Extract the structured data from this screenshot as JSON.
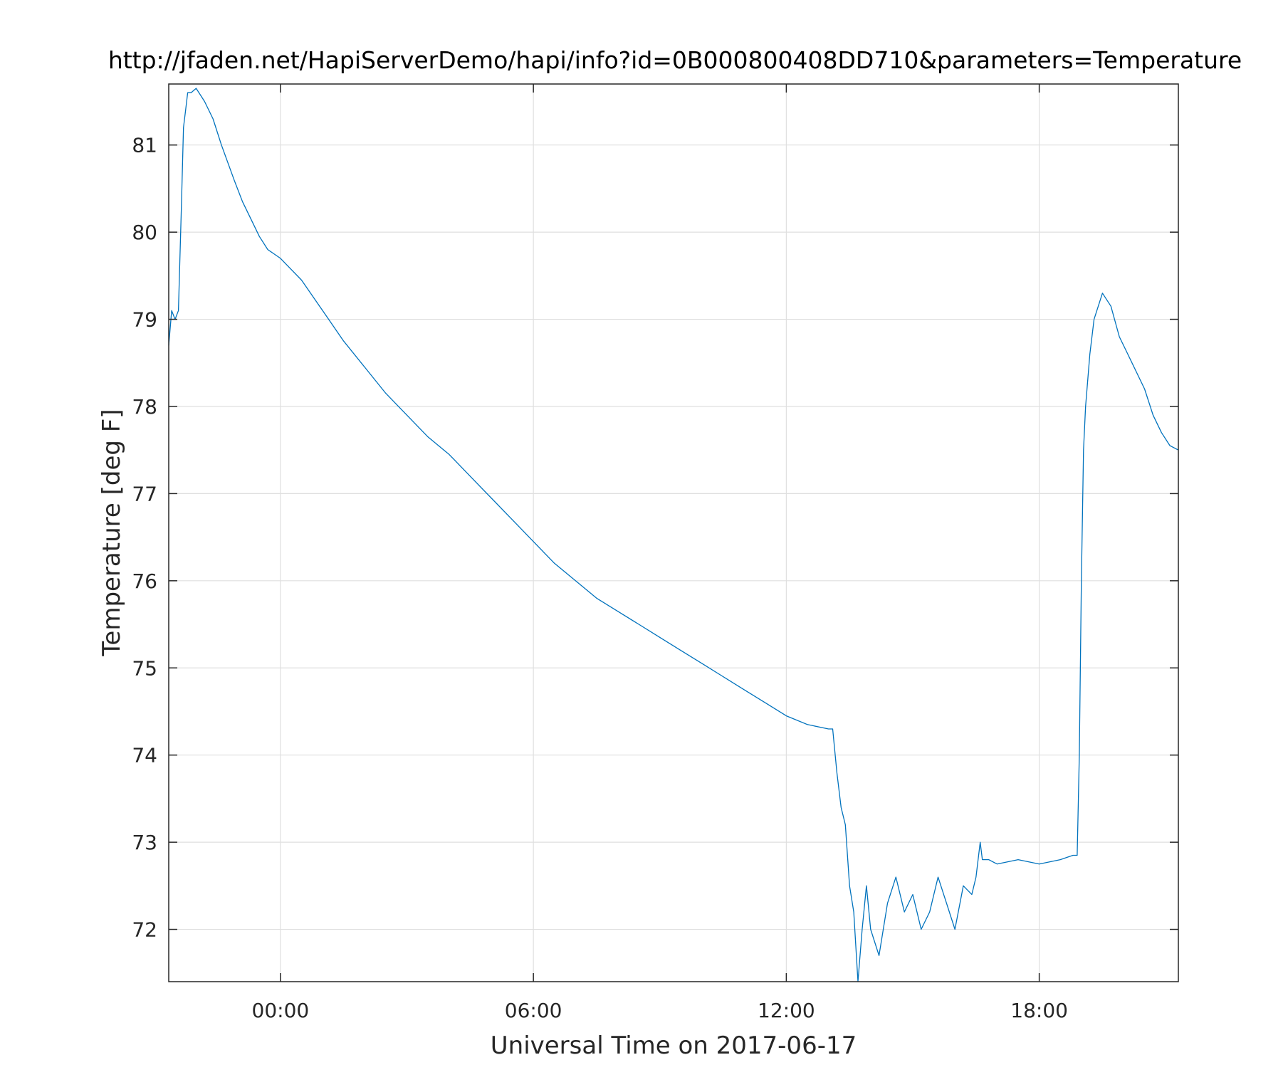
{
  "chart_data": {
    "type": "line",
    "title": "http://jfaden.net/HapiServerDemo/hapi/info?id=0B000800408DD710&parameters=Temperature",
    "xlabel": "Universal Time on 2017-06-17",
    "ylabel": "Temperature [deg F]",
    "x_unit": "hours",
    "xlim": [
      -2.65,
      21.3
    ],
    "ylim": [
      71.4,
      81.7
    ],
    "xticks": [
      {
        "value": 0,
        "label": "00:00"
      },
      {
        "value": 6,
        "label": "06:00"
      },
      {
        "value": 12,
        "label": "12:00"
      },
      {
        "value": 18,
        "label": "18:00"
      }
    ],
    "yticks": [
      {
        "value": 72,
        "label": "72"
      },
      {
        "value": 73,
        "label": "73"
      },
      {
        "value": 74,
        "label": "74"
      },
      {
        "value": 75,
        "label": "75"
      },
      {
        "value": 76,
        "label": "76"
      },
      {
        "value": 77,
        "label": "77"
      },
      {
        "value": 78,
        "label": "78"
      },
      {
        "value": 79,
        "label": "79"
      },
      {
        "value": 80,
        "label": "80"
      },
      {
        "value": 81,
        "label": "81"
      }
    ],
    "grid": true,
    "series": [
      {
        "color": "#0072BD",
        "x": [
          -2.65,
          -2.58,
          -2.5,
          -2.42,
          -2.35,
          -2.3,
          -2.25,
          -2.2,
          -2.12,
          -2.0,
          -1.8,
          -1.6,
          -1.4,
          -1.25,
          -1.1,
          -0.9,
          -0.7,
          -0.5,
          -0.3,
          0.0,
          0.5,
          1.0,
          1.5,
          2.0,
          2.5,
          3.0,
          3.5,
          4.0,
          4.5,
          5.0,
          5.5,
          6.0,
          6.5,
          7.0,
          7.5,
          8.0,
          8.5,
          9.0,
          9.5,
          10.0,
          10.5,
          11.0,
          11.5,
          12.0,
          12.5,
          13.0,
          13.1,
          13.2,
          13.3,
          13.4,
          13.5,
          13.6,
          13.7,
          13.8,
          13.9,
          14.0,
          14.2,
          14.4,
          14.6,
          14.8,
          15.0,
          15.2,
          15.4,
          15.6,
          15.8,
          16.0,
          16.2,
          16.4,
          16.5,
          16.6,
          16.65,
          16.8,
          17.0,
          17.5,
          18.0,
          18.5,
          18.8,
          18.9,
          18.95,
          19.0,
          19.05,
          19.1,
          19.2,
          19.3,
          19.5,
          19.7,
          19.9,
          20.1,
          20.3,
          20.5,
          20.7,
          20.9,
          21.1,
          21.3
        ],
        "y": [
          78.7,
          79.1,
          79.0,
          79.1,
          80.3,
          81.2,
          81.4,
          81.6,
          81.6,
          81.65,
          81.5,
          81.3,
          81.0,
          80.8,
          80.6,
          80.35,
          80.15,
          79.95,
          79.8,
          79.7,
          79.45,
          79.1,
          78.75,
          78.45,
          78.15,
          77.9,
          77.65,
          77.45,
          77.2,
          76.95,
          76.7,
          76.45,
          76.2,
          76.0,
          75.8,
          75.65,
          75.5,
          75.35,
          75.2,
          75.05,
          74.9,
          74.75,
          74.6,
          74.45,
          74.35,
          74.3,
          74.3,
          73.8,
          73.4,
          73.2,
          72.5,
          72.2,
          71.4,
          72.0,
          72.5,
          72.0,
          71.7,
          72.3,
          72.6,
          72.2,
          72.4,
          72.0,
          72.2,
          72.6,
          72.3,
          72.0,
          72.5,
          72.4,
          72.6,
          73.0,
          72.8,
          72.8,
          72.75,
          72.8,
          72.75,
          72.8,
          72.85,
          72.85,
          74.0,
          76.0,
          77.5,
          78.0,
          78.6,
          79.0,
          79.3,
          79.15,
          78.8,
          78.6,
          78.4,
          78.2,
          77.9,
          77.7,
          77.55,
          77.5
        ]
      }
    ]
  }
}
